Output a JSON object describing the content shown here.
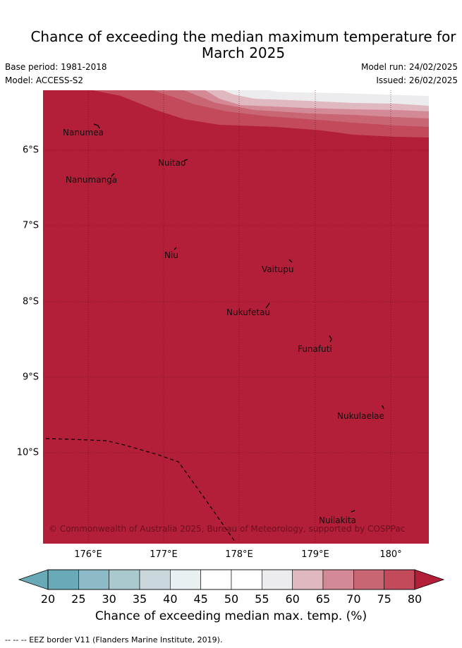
{
  "title_line1": "Chance of exceeding the median maximum temperature for",
  "title_line2": "March 2025",
  "base_period": "Base period: 1981-2018",
  "model": "Model: ACCESS-S2",
  "model_run": "Model run: 24/02/2025",
  "issued": "Issued: 26/02/2025",
  "map": {
    "fill_color": "#b31e38",
    "lat_labels": [
      "6°S",
      "7°S",
      "8°S",
      "9°S",
      "10°S"
    ],
    "lon_labels": [
      "176°E",
      "177°E",
      "178°E",
      "179°E",
      "180°"
    ],
    "islands": [
      {
        "name": "Nanumea"
      },
      {
        "name": "Nuitao"
      },
      {
        "name": "Nanumanga"
      },
      {
        "name": "Niu"
      },
      {
        "name": "Vaitupu"
      },
      {
        "name": "Nukufetau"
      },
      {
        "name": "Funafuti"
      },
      {
        "name": "Nukulaelae"
      },
      {
        "name": "Nuilakita"
      }
    ],
    "credit": "© Commonwealth of Australia 2025, Bureau of Meteorology, supported by COSPPac"
  },
  "colorbar": {
    "ticks": [
      "20",
      "25",
      "30",
      "35",
      "40",
      "45",
      "50",
      "55",
      "60",
      "65",
      "70",
      "75",
      "80"
    ],
    "colors": [
      "#6aaab8",
      "#8cbac6",
      "#a9c9ce",
      "#cad8dd",
      "#e9f0f2",
      "#ffffff",
      "#ffffff",
      "#ececee",
      "#dfb8c0",
      "#d48a96",
      "#c96673",
      "#c24a5b",
      "#b31e38"
    ],
    "label": "Chance of exceeding median max. temp. (%)"
  },
  "eez_note": "--  --  -- EEZ border V11 (Flanders Marine Institute, 2019)."
}
